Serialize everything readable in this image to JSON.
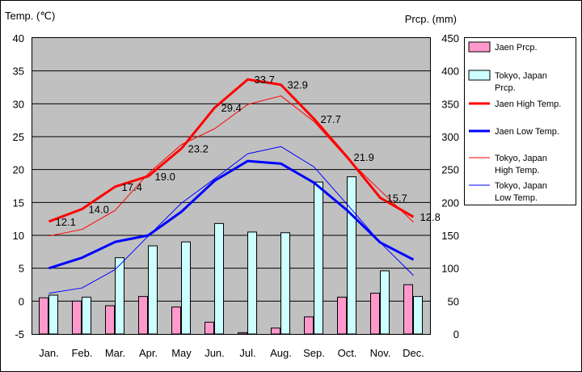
{
  "chart_data": {
    "type": "bar+line",
    "ylabel_left": "Temp. (℃)",
    "ylabel_right": "Prcp. (mm)",
    "categories": [
      "Jan.",
      "Feb.",
      "Mar.",
      "Apr.",
      "May",
      "Jun.",
      "Jul.",
      "Aug.",
      "Sep.",
      "Oct.",
      "Nov.",
      "Dec."
    ],
    "left_ylim": [
      -5,
      40
    ],
    "left_ticks": [
      "40",
      "35",
      "30",
      "25",
      "20",
      "15",
      "10",
      "5",
      "0",
      "-5"
    ],
    "right_ylim": [
      0,
      450
    ],
    "right_ticks": [
      "450",
      "400",
      "350",
      "300",
      "250",
      "200",
      "150",
      "100",
      "50",
      "0"
    ],
    "grid": true,
    "legend_placement": "right",
    "bar_series": [
      {
        "name": "Jaen Prcp.",
        "color": "#ff99cc",
        "values": [
          55,
          50,
          43,
          57,
          41,
          18,
          2,
          9,
          26,
          56,
          62,
          75
        ]
      },
      {
        "name": "Tokyo, Japan Prcp.",
        "color": "#ccffff",
        "values": [
          59,
          56,
          116,
          134,
          140,
          168,
          155,
          154,
          231,
          239,
          96,
          57
        ]
      }
    ],
    "line_series": [
      {
        "name": "Jaen High Temp.",
        "color": "#ff0000",
        "width": 3,
        "values": [
          12.1,
          14.0,
          17.4,
          19.0,
          23.2,
          29.4,
          33.7,
          32.9,
          27.7,
          21.9,
          15.7,
          12.8
        ]
      },
      {
        "name": "Jaen Low Temp.",
        "color": "#0000ff",
        "width": 3,
        "values": [
          5.0,
          6.6,
          9.0,
          10.0,
          13.6,
          18.3,
          21.3,
          20.9,
          18.0,
          13.8,
          8.9,
          6.3
        ]
      },
      {
        "name": "Tokyo, Japan High Temp.",
        "color": "#ff0000",
        "width": 1,
        "values": [
          9.9,
          10.9,
          13.8,
          19.4,
          23.8,
          26.2,
          29.9,
          31.2,
          27.3,
          21.7,
          16.8,
          12.0
        ]
      },
      {
        "name": "Tokyo, Japan Low Temp.",
        "color": "#0000ff",
        "width": 1,
        "values": [
          1.2,
          2.0,
          4.8,
          9.9,
          14.9,
          18.6,
          22.4,
          23.5,
          20.4,
          14.7,
          8.9,
          3.9
        ]
      }
    ],
    "data_labels": [
      "12.1",
      "14.0",
      "17.4",
      "19.0",
      "23.2",
      "29.4",
      "33.7",
      "32.9",
      "27.7",
      "21.9",
      "15.7",
      "12.8"
    ],
    "legend": [
      {
        "kind": "bar",
        "label": "Jaen Prcp.",
        "color": "#ff99cc"
      },
      {
        "kind": "bar",
        "label": "Tokyo, Japan Prcp.",
        "color": "#ccffff"
      },
      {
        "kind": "line",
        "label": "Jaen High Temp.",
        "color": "#ff0000",
        "width": 3
      },
      {
        "kind": "line",
        "label": "Jaen Low Temp.",
        "color": "#0000ff",
        "width": 3
      },
      {
        "kind": "line",
        "label": "Tokyo, Japan High Temp.",
        "color": "#ff0000",
        "width": 1
      },
      {
        "kind": "line",
        "label": "Tokyo, Japan Low Temp.",
        "color": "#0000ff",
        "width": 1
      }
    ],
    "plot_bg": "#c0c0c0"
  }
}
